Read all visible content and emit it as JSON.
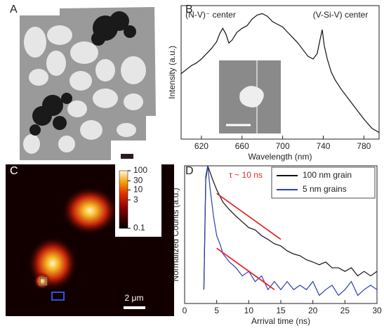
{
  "panel_labels": [
    "A",
    "B",
    "C",
    "D"
  ],
  "chart_data": [
    {
      "type": "line",
      "x_label": "Wavelength (nm)",
      "y_label": "Intensity (a.u.)",
      "annotations": [
        "(N-V)⁻ center",
        "(V-Si-V) center"
      ],
      "x": [
        600,
        605,
        610,
        615,
        620,
        625,
        630,
        635,
        638,
        641,
        644,
        647,
        650,
        655,
        660,
        665,
        670,
        675,
        680,
        685,
        690,
        695,
        700,
        705,
        710,
        715,
        720,
        725,
        730,
        734,
        737,
        739,
        741,
        744,
        748,
        752,
        758,
        765,
        772,
        780,
        788,
        795
      ],
      "values": [
        0.49,
        0.52,
        0.55,
        0.57,
        0.6,
        0.64,
        0.68,
        0.73,
        0.79,
        0.83,
        0.79,
        0.72,
        0.74,
        0.8,
        0.83,
        0.85,
        0.9,
        0.93,
        0.94,
        0.92,
        0.88,
        0.86,
        0.84,
        0.8,
        0.76,
        0.72,
        0.67,
        0.62,
        0.6,
        0.64,
        0.75,
        0.82,
        0.7,
        0.6,
        0.5,
        0.44,
        0.37,
        0.3,
        0.23,
        0.15,
        0.08,
        0.05
      ],
      "color": "#111111",
      "xlim": [
        600,
        795
      ],
      "xticks": [
        620,
        660,
        700,
        740,
        780
      ],
      "ylim": [
        0,
        1
      ]
    },
    {
      "type": "image",
      "colorbar": {
        "lim": [
          0.1,
          100
        ],
        "ticks": [
          100,
          30,
          10,
          3,
          0.1
        ],
        "log": true
      },
      "scale_bar_label": "2 μm"
    },
    {
      "type": "line",
      "x_label": "Arrival time (ns)",
      "y_label": "Normalized Counts (a.u.)",
      "annotations": [
        "τ ~ 10 ns"
      ],
      "annotation_color": "#e02828",
      "x": [
        3,
        3.3,
        3.6,
        4,
        4.5,
        5,
        5.5,
        6,
        7,
        8,
        9,
        10,
        11,
        12,
        13,
        14,
        15,
        16,
        17,
        18,
        19,
        20,
        21,
        22,
        23,
        24,
        25,
        26,
        27,
        28,
        29,
        30
      ],
      "series": [
        {
          "name": "100 nm grain",
          "color": "#111111",
          "values": [
            0.002,
            0.5,
            1,
            0.7,
            0.45,
            0.3,
            0.22,
            0.16,
            0.11,
            0.08,
            0.06,
            0.045,
            0.04,
            0.03,
            0.025,
            0.02,
            0.018,
            0.014,
            0.012,
            0.011,
            0.009,
            0.008,
            0.007,
            0.008,
            0.006,
            0.006,
            0.005,
            0.006,
            0.004,
            0.005,
            0.004,
            0.005
          ]
        },
        {
          "name": "5 nm grains",
          "color": "#2a3fb0",
          "values": [
            0.002,
            0.6,
            1,
            0.3,
            0.08,
            0.03,
            0.02,
            0.012,
            0.008,
            0.006,
            0.004,
            0.005,
            0.003,
            0.004,
            0.002,
            0.003,
            0.002,
            0.003,
            0.002,
            0.0025,
            0.002,
            0.003,
            0.0015,
            0.002,
            0.0025,
            0.0015,
            0.002,
            0.003,
            0.0015,
            0.002,
            0.0025,
            0.002
          ]
        }
      ],
      "fits": [
        {
          "color": "#e02828",
          "x": [
            5,
            15
          ],
          "values": [
            0.25,
            0.025
          ]
        },
        {
          "color": "#e02828",
          "x": [
            5,
            14
          ],
          "values": [
            0.016,
            0.002
          ]
        }
      ],
      "xlim": [
        0,
        30
      ],
      "xticks": [
        0,
        5,
        10,
        15,
        20,
        25,
        30
      ],
      "ylim": [
        0.001,
        1
      ],
      "log_y": true,
      "legend": "top-right"
    }
  ]
}
